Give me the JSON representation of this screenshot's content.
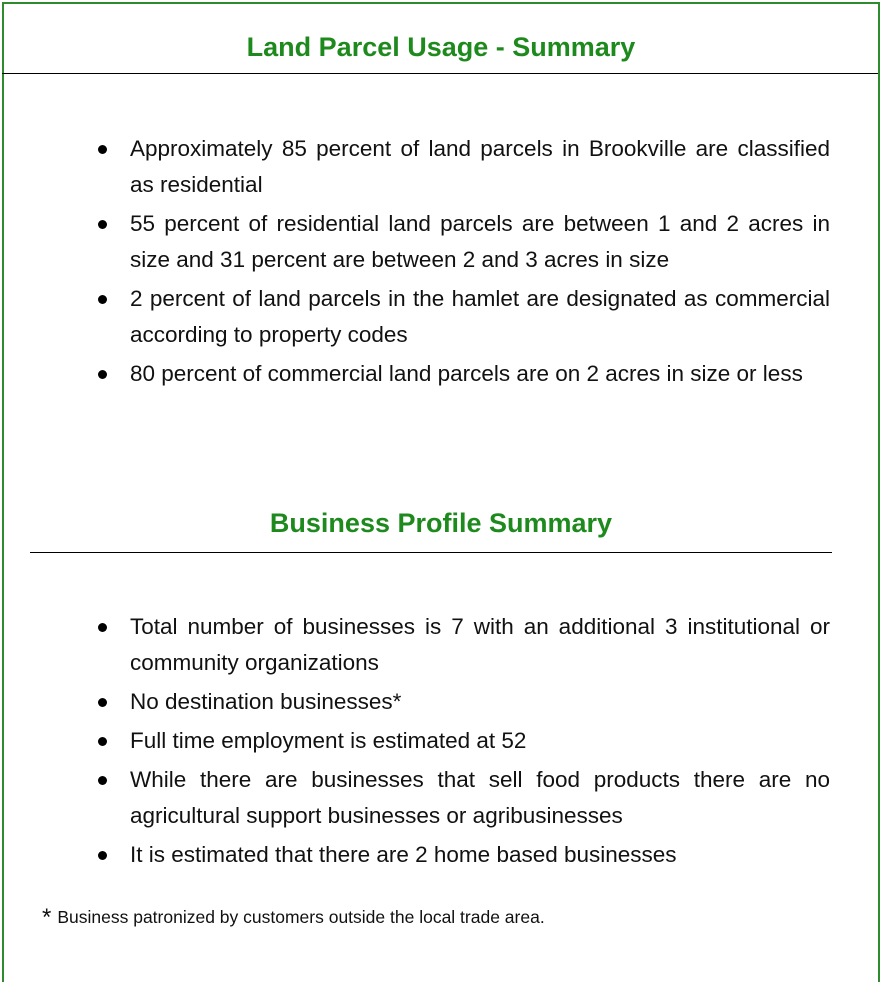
{
  "sections": [
    {
      "heading": "Land Parcel Usage - Summary",
      "bullets": [
        "Approximately 85 percent of land parcels in Brookville are classified as residential",
        "55 percent of residential land parcels are between 1 and 2 acres in size and 31 percent are between 2 and 3 acres in size",
        "2 percent of land parcels in the hamlet are designated as commercial according to property codes",
        "80 percent of commercial land parcels are on 2 acres in size or less"
      ]
    },
    {
      "heading": "Business Profile Summary",
      "bullets": [
        "Total number of businesses is 7 with an additional 3 institutional or community organizations",
        "No destination businesses*",
        "Full time employment is estimated at 52",
        "While there are businesses that sell food products there are no agricultural support businesses or agribusinesses",
        "It is estimated that there are 2 home based businesses"
      ]
    }
  ],
  "footnote": {
    "marker": "*",
    "text": "Business patronized by customers outside the local trade area."
  }
}
